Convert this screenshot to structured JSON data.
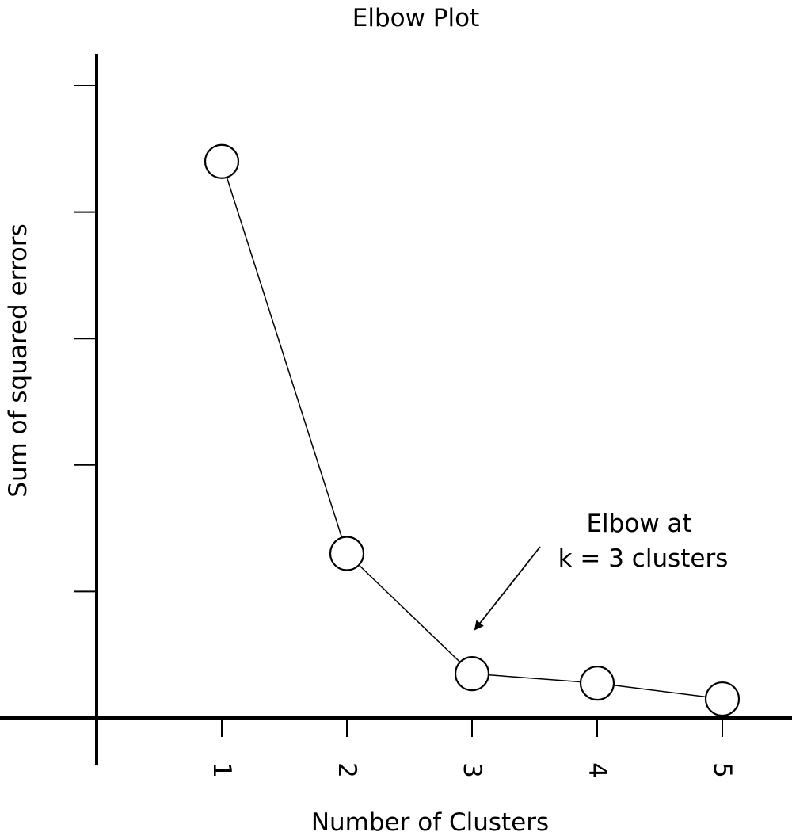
{
  "chart_data": {
    "type": "line",
    "title": "Elbow Plot",
    "xlabel": "Number of Clusters",
    "ylabel": "Sum of squared errors",
    "categories": [
      "1",
      "2",
      "3",
      "4",
      "5"
    ],
    "x": [
      1,
      2,
      3,
      4,
      5
    ],
    "series": [
      {
        "values": [
          8.8,
          2.6,
          0.7,
          0.55,
          0.3
        ]
      }
    ],
    "ylim": [
      0,
      10
    ],
    "yticks": [
      2,
      4,
      6,
      8,
      10
    ],
    "ytick_labels_shown": false,
    "grid": false,
    "marker": "open-circle",
    "annotation": {
      "lines": [
        "Elbow at",
        "k = 3 clusters"
      ],
      "target_x": 3
    },
    "colors": {
      "line": "#000000",
      "marker_fill": "#ffffff",
      "marker_stroke": "#000000"
    }
  }
}
